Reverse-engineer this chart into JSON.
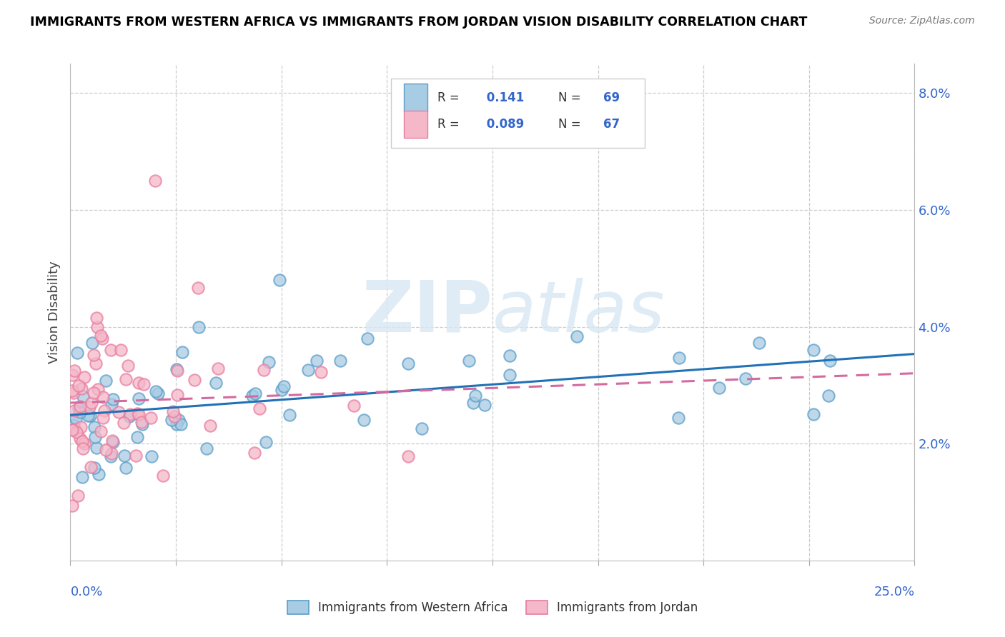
{
  "title": "IMMIGRANTS FROM WESTERN AFRICA VS IMMIGRANTS FROM JORDAN VISION DISABILITY CORRELATION CHART",
  "source": "Source: ZipAtlas.com",
  "ylabel": "Vision Disability",
  "ylim": [
    0.0,
    0.085
  ],
  "xlim": [
    0.0,
    0.25
  ],
  "yticks": [
    0.02,
    0.04,
    0.06,
    0.08
  ],
  "ytick_labels": [
    "2.0%",
    "4.0%",
    "6.0%",
    "8.0%"
  ],
  "R_blue": 0.141,
  "N_blue": 69,
  "R_pink": 0.089,
  "N_pink": 67,
  "legend_label_blue": "Immigrants from Western Africa",
  "legend_label_pink": "Immigrants from Jordan",
  "blue_color": "#a8cce4",
  "pink_color": "#f4b8c8",
  "blue_edge_color": "#5b9ec9",
  "pink_edge_color": "#e87ca0",
  "blue_line_color": "#2171b5",
  "pink_line_color": "#d46a9f",
  "grid_color": "#cccccc",
  "text_color": "#3366cc",
  "watermark": "ZIPatlas",
  "background_color": "#ffffff"
}
